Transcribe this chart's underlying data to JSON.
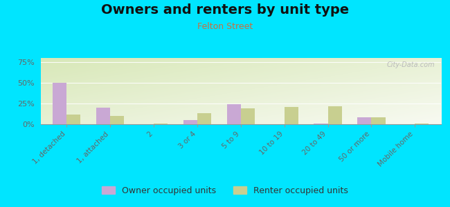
{
  "title": "Owners and renters by unit type",
  "subtitle": "Felton Street",
  "categories": [
    "1, detached",
    "1, attached",
    "2",
    "3 or 4",
    "5 to 9",
    "10 to 19",
    "20 to 49",
    "50 or more",
    "Mobile home"
  ],
  "owner_values": [
    50,
    20,
    0,
    5,
    24,
    0,
    1,
    8,
    0
  ],
  "renter_values": [
    12,
    10,
    1,
    13,
    19,
    21,
    22,
    8,
    1
  ],
  "owner_color": "#c9a8d4",
  "renter_color": "#c8cf90",
  "background_outer": "#00e5ff",
  "title_fontsize": 14,
  "subtitle_fontsize": 9,
  "subtitle_color": "#c87040",
  "ylim": [
    0,
    80
  ],
  "yticks": [
    0,
    25,
    50,
    75
  ],
  "ytick_labels": [
    "0%",
    "25%",
    "50%",
    "75%"
  ],
  "bar_width": 0.32,
  "legend_owner": "Owner occupied units",
  "legend_renter": "Renter occupied units",
  "watermark": "City-Data.com"
}
